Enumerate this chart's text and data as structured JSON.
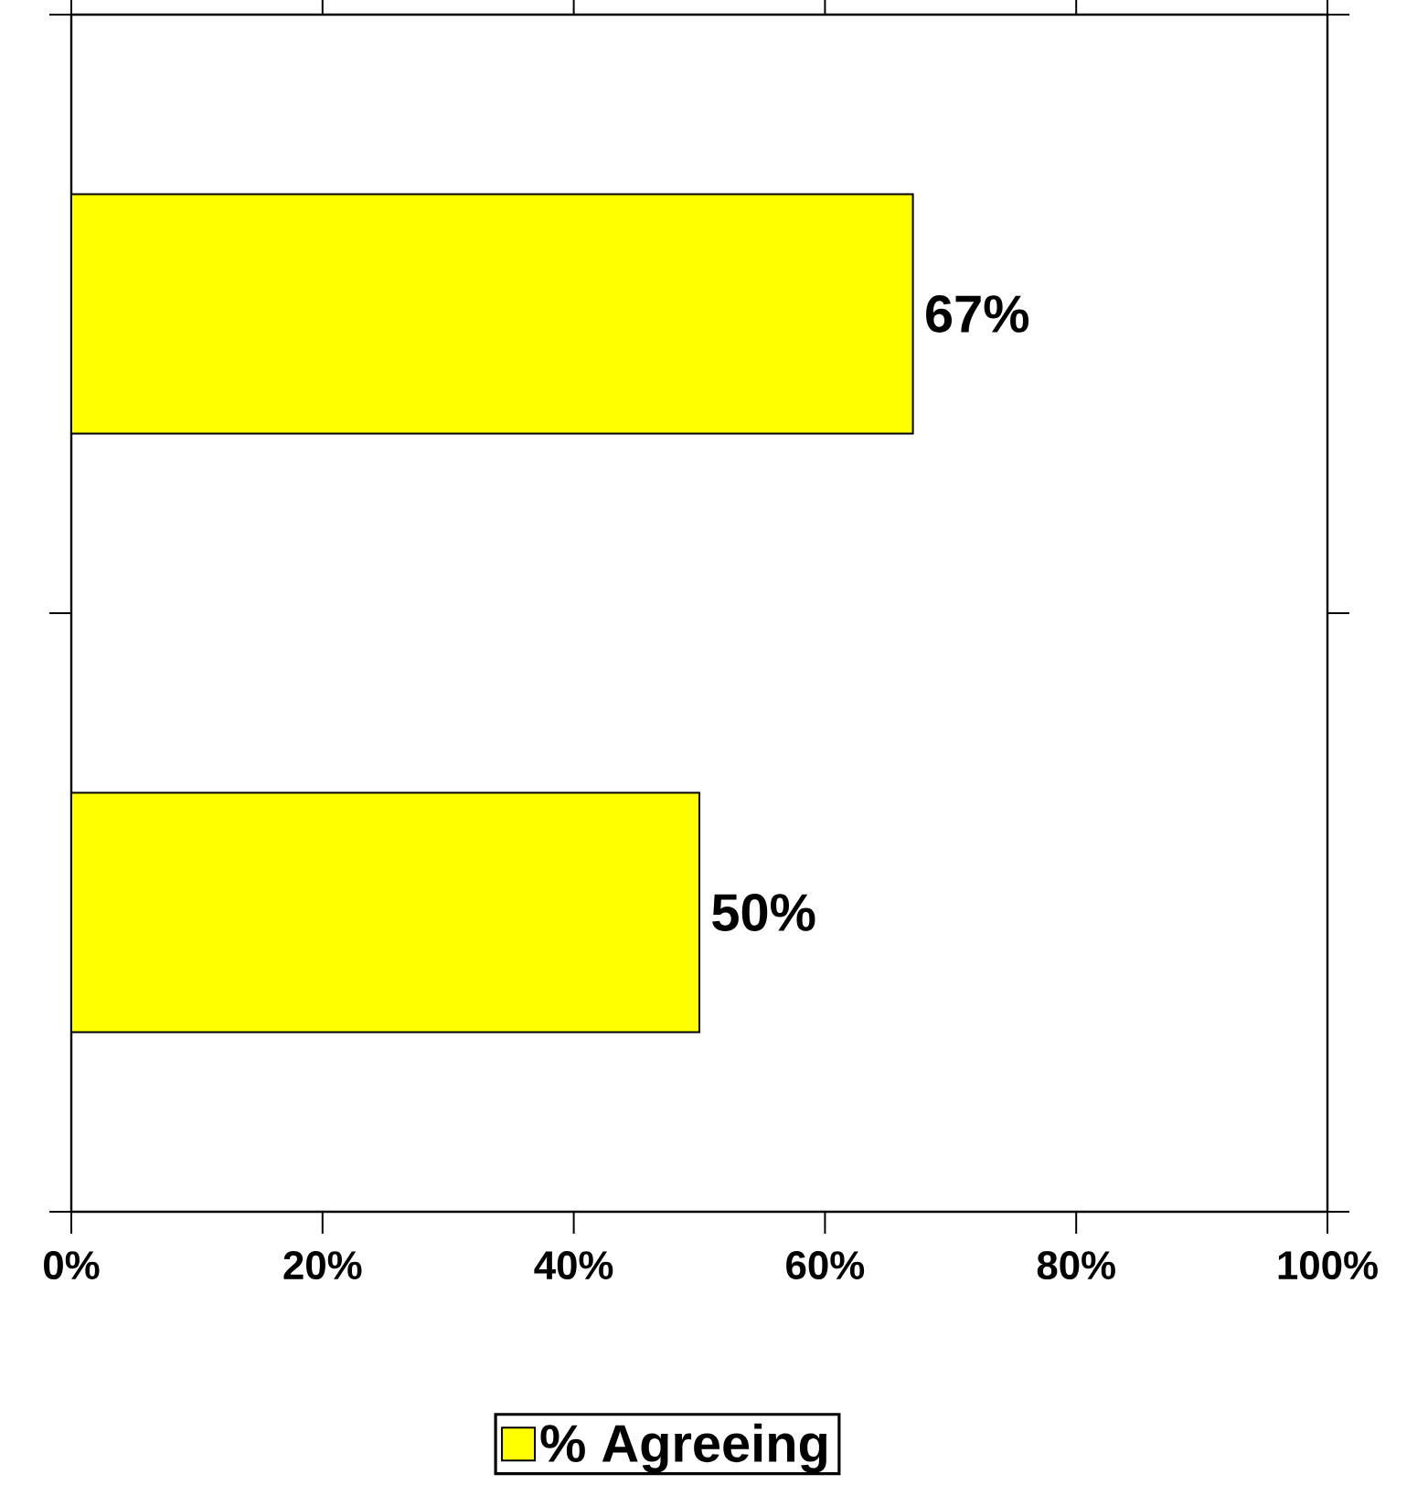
{
  "chart_data": {
    "type": "bar",
    "orientation": "horizontal",
    "categories": [
      null,
      null
    ],
    "series": [
      {
        "name": "% Agreeing",
        "color": "#ffff00",
        "values": [
          67,
          50
        ]
      }
    ],
    "value_labels": [
      "67%",
      "50%"
    ],
    "xlim": [
      0,
      100
    ],
    "xticks": [
      {
        "value": 0,
        "label": "0%"
      },
      {
        "value": 20,
        "label": "20%"
      },
      {
        "value": 40,
        "label": "40%"
      },
      {
        "value": 60,
        "label": "60%"
      },
      {
        "value": 80,
        "label": "80%"
      },
      {
        "value": 100,
        "label": "100%"
      }
    ],
    "legend": "bottom",
    "grid": false
  }
}
